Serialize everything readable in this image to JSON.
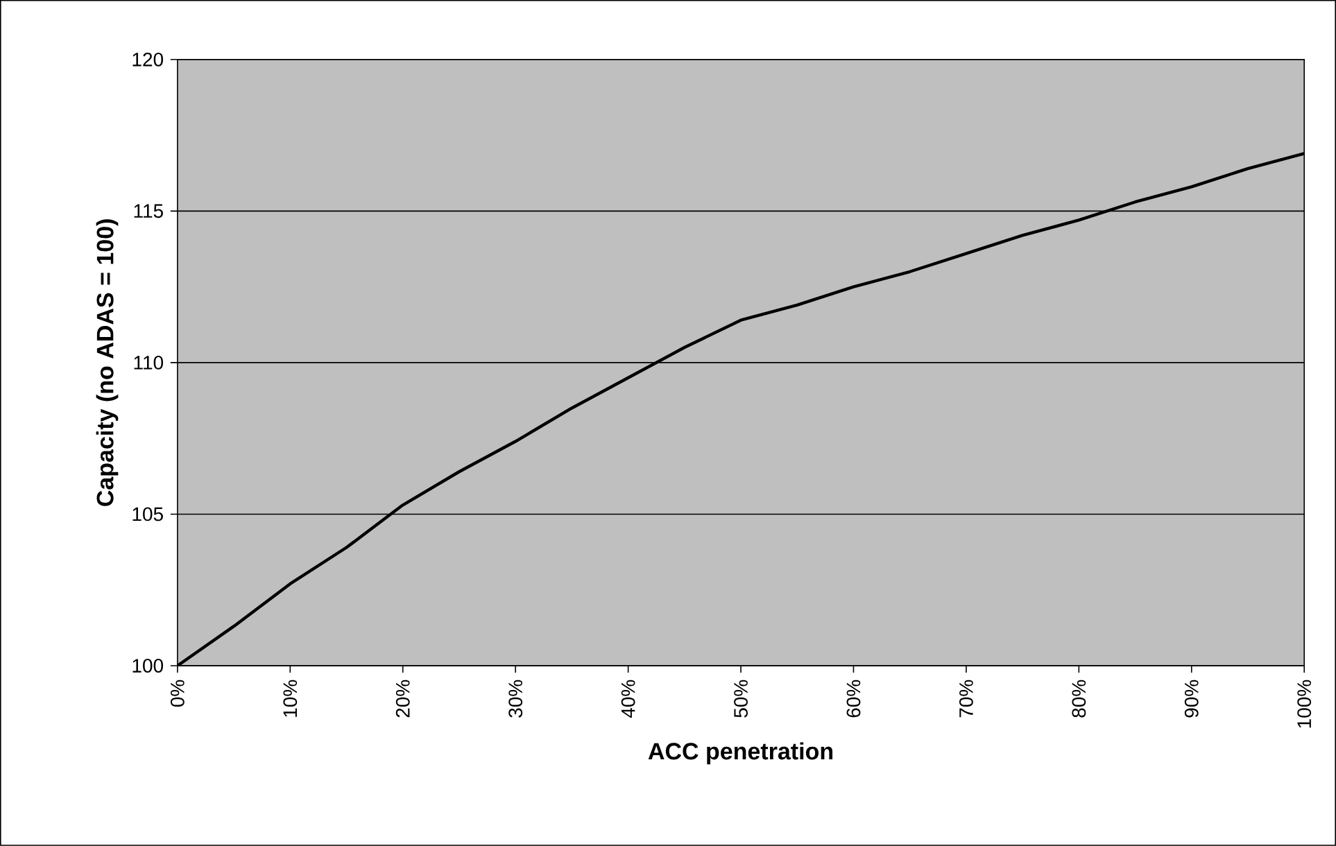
{
  "chart_data": {
    "type": "line",
    "xlabel": "ACC penetration",
    "ylabel": "Capacity (no ADAS = 100)",
    "x": [
      0,
      5,
      10,
      15,
      20,
      25,
      30,
      35,
      40,
      45,
      50,
      55,
      60,
      65,
      70,
      75,
      80,
      85,
      90,
      95,
      100
    ],
    "series": [
      {
        "color": "#000000",
        "values": [
          100,
          101.3,
          102.7,
          103.9,
          105.3,
          106.4,
          107.4,
          108.5,
          109.5,
          110.5,
          111.4,
          111.9,
          112.5,
          113.0,
          113.6,
          114.2,
          114.7,
          115.3,
          115.8,
          116.4,
          116.9
        ]
      }
    ],
    "xlim": [
      0,
      100
    ],
    "ylim": [
      100,
      120
    ],
    "xticks": [
      {
        "value": 0,
        "label": "0%"
      },
      {
        "value": 10,
        "label": "10%"
      },
      {
        "value": 20,
        "label": "20%"
      },
      {
        "value": 30,
        "label": "30%"
      },
      {
        "value": 40,
        "label": "40%"
      },
      {
        "value": 50,
        "label": "50%"
      },
      {
        "value": 60,
        "label": "60%"
      },
      {
        "value": 70,
        "label": "70%"
      },
      {
        "value": 80,
        "label": "80%"
      },
      {
        "value": 90,
        "label": "90%"
      },
      {
        "value": 100,
        "label": "100%"
      }
    ],
    "yticks": [
      100,
      105,
      110,
      115,
      120
    ],
    "grid": "y",
    "marker": "none",
    "line_style": "solid"
  }
}
